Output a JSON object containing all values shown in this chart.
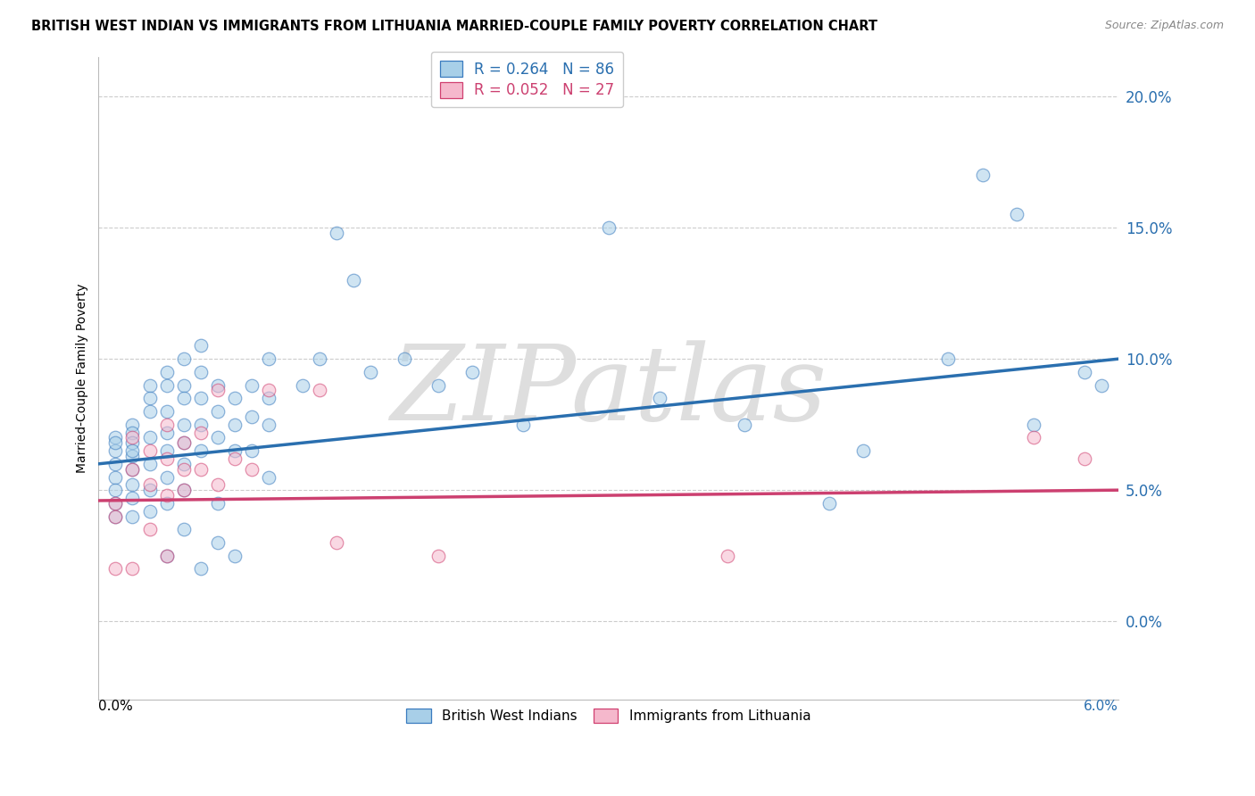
{
  "title": "BRITISH WEST INDIAN VS IMMIGRANTS FROM LITHUANIA MARRIED-COUPLE FAMILY POVERTY CORRELATION CHART",
  "source": "Source: ZipAtlas.com",
  "ylabel": "Married-Couple Family Poverty",
  "xlim": [
    0.0,
    0.06
  ],
  "ylim": [
    -0.03,
    0.215
  ],
  "y_ticks": [
    0.0,
    0.05,
    0.1,
    0.15,
    0.2
  ],
  "blue_R": 0.264,
  "blue_N": 86,
  "pink_R": 0.052,
  "pink_N": 27,
  "blue_face_color": "#a8cfe8",
  "blue_edge_color": "#3a7bbf",
  "blue_line_color": "#2a6faf",
  "pink_face_color": "#f5b8cc",
  "pink_edge_color": "#d04070",
  "pink_line_color": "#cc4070",
  "legend_label_blue": "British West Indians",
  "legend_label_pink": "Immigrants from Lithuania",
  "watermark": "ZIPatlas",
  "background_color": "#ffffff",
  "grid_color": "#cccccc",
  "blue_scatter_x": [
    0.001,
    0.001,
    0.001,
    0.001,
    0.001,
    0.001,
    0.001,
    0.001,
    0.002,
    0.002,
    0.002,
    0.002,
    0.002,
    0.002,
    0.002,
    0.002,
    0.002,
    0.003,
    0.003,
    0.003,
    0.003,
    0.003,
    0.003,
    0.003,
    0.004,
    0.004,
    0.004,
    0.004,
    0.004,
    0.004,
    0.004,
    0.004,
    0.005,
    0.005,
    0.005,
    0.005,
    0.005,
    0.005,
    0.005,
    0.005,
    0.006,
    0.006,
    0.006,
    0.006,
    0.006,
    0.006,
    0.007,
    0.007,
    0.007,
    0.007,
    0.007,
    0.008,
    0.008,
    0.008,
    0.008,
    0.009,
    0.009,
    0.009,
    0.01,
    0.01,
    0.01,
    0.01,
    0.012,
    0.013,
    0.014,
    0.015,
    0.016,
    0.018,
    0.02,
    0.022,
    0.025,
    0.03,
    0.033,
    0.038,
    0.043,
    0.045,
    0.05,
    0.052,
    0.054,
    0.055,
    0.058,
    0.059
  ],
  "blue_scatter_y": [
    0.07,
    0.065,
    0.06,
    0.055,
    0.05,
    0.045,
    0.068,
    0.04,
    0.075,
    0.072,
    0.068,
    0.063,
    0.058,
    0.052,
    0.047,
    0.04,
    0.065,
    0.09,
    0.085,
    0.08,
    0.07,
    0.06,
    0.05,
    0.042,
    0.095,
    0.09,
    0.08,
    0.072,
    0.065,
    0.055,
    0.045,
    0.025,
    0.1,
    0.09,
    0.085,
    0.075,
    0.068,
    0.06,
    0.05,
    0.035,
    0.105,
    0.095,
    0.085,
    0.075,
    0.065,
    0.02,
    0.09,
    0.08,
    0.07,
    0.045,
    0.03,
    0.085,
    0.075,
    0.065,
    0.025,
    0.09,
    0.078,
    0.065,
    0.1,
    0.085,
    0.075,
    0.055,
    0.09,
    0.1,
    0.148,
    0.13,
    0.095,
    0.1,
    0.09,
    0.095,
    0.075,
    0.15,
    0.085,
    0.075,
    0.045,
    0.065,
    0.1,
    0.17,
    0.155,
    0.075,
    0.095,
    0.09
  ],
  "pink_scatter_x": [
    0.001,
    0.001,
    0.001,
    0.002,
    0.002,
    0.002,
    0.003,
    0.003,
    0.003,
    0.004,
    0.004,
    0.004,
    0.004,
    0.005,
    0.005,
    0.005,
    0.006,
    0.006,
    0.007,
    0.007,
    0.008,
    0.009,
    0.01,
    0.013,
    0.014,
    0.02,
    0.037,
    0.055,
    0.058
  ],
  "pink_scatter_y": [
    0.045,
    0.04,
    0.02,
    0.07,
    0.058,
    0.02,
    0.065,
    0.052,
    0.035,
    0.075,
    0.062,
    0.048,
    0.025,
    0.05,
    0.068,
    0.058,
    0.072,
    0.058,
    0.088,
    0.052,
    0.062,
    0.058,
    0.088,
    0.088,
    0.03,
    0.025,
    0.025,
    0.07,
    0.062
  ],
  "blue_line_x": [
    0.0,
    0.06
  ],
  "blue_line_y": [
    0.06,
    0.1
  ],
  "pink_line_x": [
    0.0,
    0.06
  ],
  "pink_line_y": [
    0.046,
    0.05
  ]
}
